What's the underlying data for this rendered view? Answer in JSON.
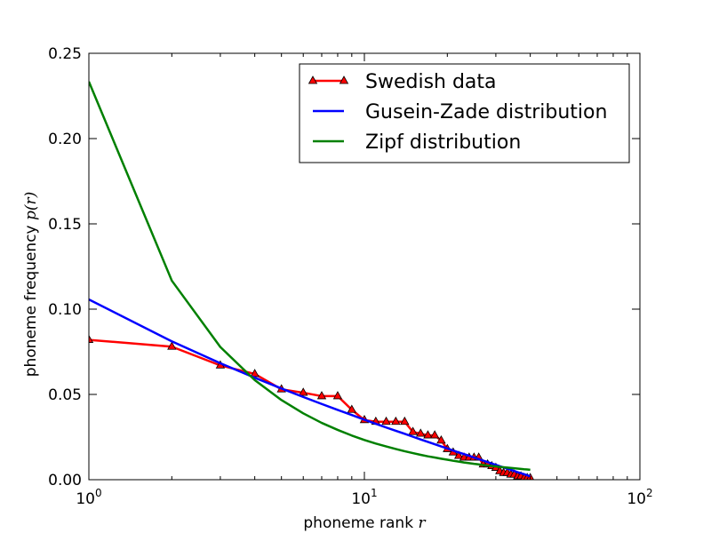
{
  "chart_data": {
    "type": "line",
    "xscale": "log",
    "xlim": [
      1,
      100
    ],
    "ylim": [
      0,
      0.25
    ],
    "xlabel": "phoneme rank",
    "xlabel_var": "r",
    "ylabel": "phoneme frequency",
    "ylabel_var": "p(r)",
    "legend_position": "top-right",
    "x_ticks": [
      {
        "value": 1,
        "base": "10",
        "exp": "0"
      },
      {
        "value": 10,
        "base": "10",
        "exp": "1"
      },
      {
        "value": 100,
        "base": "10",
        "exp": "2"
      }
    ],
    "y_ticks": [
      {
        "value": 0,
        "label": "0.00"
      },
      {
        "value": 0.05,
        "label": "0.05"
      },
      {
        "value": 0.1,
        "label": "0.10"
      },
      {
        "value": 0.15,
        "label": "0.15"
      },
      {
        "value": 0.2,
        "label": "0.20"
      },
      {
        "value": 0.25,
        "label": "0.25"
      }
    ],
    "series": [
      {
        "name": "Swedish data",
        "color": "#ff0000",
        "marker": "triangle",
        "x": [
          1,
          2,
          3,
          4,
          5,
          6,
          7,
          8,
          9,
          10,
          11,
          12,
          13,
          14,
          15,
          16,
          17,
          18,
          19,
          20,
          21,
          22,
          23,
          24,
          25,
          26,
          27,
          28,
          29,
          30,
          31,
          32,
          33,
          34,
          35,
          36,
          37,
          38,
          39,
          40
        ],
        "y": [
          0.082,
          0.078,
          0.067,
          0.062,
          0.053,
          0.051,
          0.049,
          0.049,
          0.041,
          0.035,
          0.034,
          0.034,
          0.034,
          0.034,
          0.028,
          0.027,
          0.026,
          0.026,
          0.023,
          0.018,
          0.016,
          0.014,
          0.013,
          0.013,
          0.013,
          0.013,
          0.009,
          0.009,
          0.008,
          0.007,
          0.005,
          0.004,
          0.004,
          0.003,
          0.003,
          0.002,
          0.002,
          0.001,
          0.001,
          0.001
        ]
      },
      {
        "name": "Gusein-Zade distribution",
        "color": "#0000ff",
        "marker": "none",
        "x": [
          1,
          2,
          3,
          4,
          5,
          6,
          7,
          8,
          9,
          10,
          11,
          12,
          13,
          14,
          15,
          16,
          17,
          18,
          19,
          20,
          21,
          22,
          23,
          24,
          25,
          26,
          27,
          28,
          29,
          30,
          31,
          32,
          33,
          34,
          35,
          36,
          37,
          38,
          39,
          40
        ],
        "y": [
          0.1057,
          0.0811,
          0.0683,
          0.0598,
          0.0535,
          0.0485,
          0.0444,
          0.0409,
          0.0379,
          0.0352,
          0.0328,
          0.0306,
          0.0287,
          0.0269,
          0.0252,
          0.0236,
          0.0222,
          0.0208,
          0.0195,
          0.0183,
          0.0171,
          0.016,
          0.015,
          0.014,
          0.013,
          0.0121,
          0.0112,
          0.0103,
          0.0095,
          0.0087,
          0.0079,
          0.0072,
          0.0065,
          0.0058,
          0.0051,
          0.0044,
          0.0038,
          0.0032,
          0.0026,
          0.002
        ]
      },
      {
        "name": "Zipf distribution",
        "color": "#008000",
        "marker": "none",
        "x": [
          1,
          2,
          3,
          4,
          5,
          6,
          7,
          8,
          9,
          10,
          11,
          12,
          13,
          14,
          15,
          16,
          17,
          18,
          19,
          20,
          21,
          22,
          23,
          24,
          25,
          26,
          27,
          28,
          29,
          30,
          31,
          32,
          33,
          34,
          35,
          36,
          37,
          38,
          39,
          40
        ],
        "y": [
          0.2334,
          0.1167,
          0.0778,
          0.0584,
          0.0467,
          0.0389,
          0.0333,
          0.0292,
          0.0259,
          0.0233,
          0.0212,
          0.0195,
          0.018,
          0.0167,
          0.0156,
          0.0146,
          0.0137,
          0.013,
          0.0123,
          0.0117,
          0.0111,
          0.0106,
          0.0101,
          0.0097,
          0.0093,
          0.009,
          0.0086,
          0.0083,
          0.008,
          0.0078,
          0.0075,
          0.0073,
          0.0071,
          0.0069,
          0.0067,
          0.0065,
          0.0063,
          0.0061,
          0.006,
          0.0058
        ]
      }
    ]
  }
}
